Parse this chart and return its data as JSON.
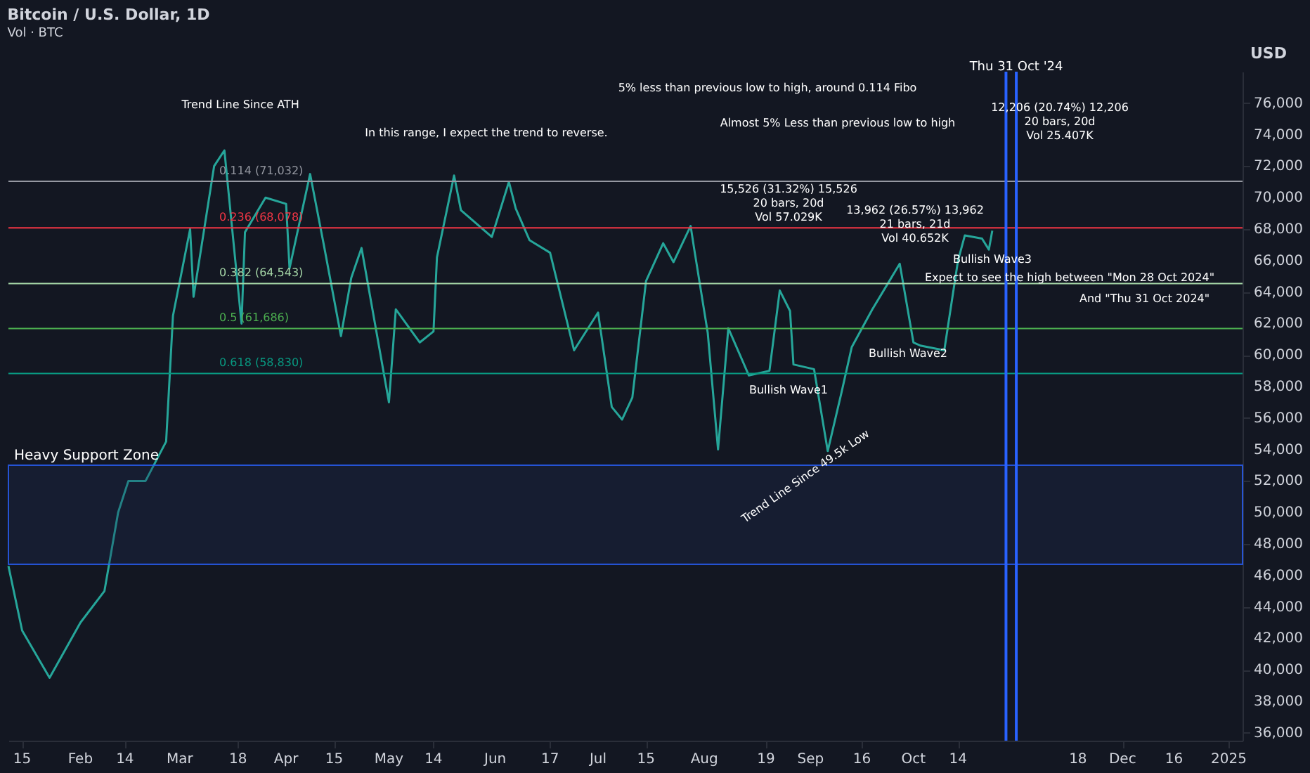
{
  "chart_data": {
    "type": "line",
    "title": "Bitcoin / U.S. Dollar, 1D",
    "subtitle": "Vol · BTC",
    "ylabel": "USD",
    "x": [
      "2024-01-11",
      "2024-01-15",
      "2024-01-23",
      "2024-02-01",
      "2024-02-08",
      "2024-02-12",
      "2024-02-15",
      "2024-02-20",
      "2024-02-26",
      "2024-02-28",
      "2024-03-04",
      "2024-03-05",
      "2024-03-11",
      "2024-03-14",
      "2024-03-19",
      "2024-03-20",
      "2024-03-26",
      "2024-04-01",
      "2024-04-02",
      "2024-04-08",
      "2024-04-12",
      "2024-04-17",
      "2024-04-20",
      "2024-04-23",
      "2024-05-01",
      "2024-05-03",
      "2024-05-10",
      "2024-05-14",
      "2024-05-15",
      "2024-05-20",
      "2024-05-22",
      "2024-05-31",
      "2024-06-05",
      "2024-06-07",
      "2024-06-11",
      "2024-06-17",
      "2024-06-24",
      "2024-07-01",
      "2024-07-05",
      "2024-07-08",
      "2024-07-11",
      "2024-07-15",
      "2024-07-20",
      "2024-07-23",
      "2024-07-28",
      "2024-07-29",
      "2024-08-02",
      "2024-08-05",
      "2024-08-08",
      "2024-08-14",
      "2024-08-20",
      "2024-08-23",
      "2024-08-26",
      "2024-08-27",
      "2024-09-02",
      "2024-09-06",
      "2024-09-10",
      "2024-09-13",
      "2024-09-19",
      "2024-09-27",
      "2024-10-01",
      "2024-10-03",
      "2024-10-10",
      "2024-10-14",
      "2024-10-16",
      "2024-10-21",
      "2024-10-23",
      "2024-10-24"
    ],
    "series": [
      {
        "color": "#26a69a",
        "values": [
          46600,
          42500,
          39500,
          43000,
          45000,
          50000,
          52000,
          52000,
          54500,
          62500,
          68000,
          63700,
          72000,
          73000,
          62000,
          67800,
          70000,
          69600,
          65500,
          71500,
          67000,
          61200,
          64900,
          66800,
          57000,
          62900,
          60800,
          61500,
          66200,
          71400,
          69200,
          67500,
          71000,
          69300,
          67300,
          66500,
          60300,
          62700,
          56700,
          55900,
          57300,
          64700,
          67100,
          65900,
          68200,
          66800,
          61400,
          54000,
          61700,
          58700,
          59000,
          64100,
          62800,
          59400,
          59100,
          53900,
          57600,
          60500,
          62900,
          65800,
          60800,
          60600,
          60300,
          66000,
          67600,
          67400,
          66700,
          67900
        ]
      }
    ],
    "xlim": [
      "2024-01-11",
      "2025-01-05"
    ],
    "xticks": [
      {
        "value": "2024-01-15",
        "label": "15"
      },
      {
        "value": "2024-02-01",
        "label": "Feb"
      },
      {
        "value": "2024-02-14",
        "label": "14"
      },
      {
        "value": "2024-03-01",
        "label": "Mar"
      },
      {
        "value": "2024-03-18",
        "label": "18"
      },
      {
        "value": "2024-04-01",
        "label": "Apr"
      },
      {
        "value": "2024-04-15",
        "label": "15"
      },
      {
        "value": "2024-05-01",
        "label": "May"
      },
      {
        "value": "2024-05-14",
        "label": "14"
      },
      {
        "value": "2024-06-01",
        "label": "Jun"
      },
      {
        "value": "2024-06-17",
        "label": "17"
      },
      {
        "value": "2024-07-01",
        "label": "Jul"
      },
      {
        "value": "2024-07-15",
        "label": "15"
      },
      {
        "value": "2024-08-01",
        "label": "Aug"
      },
      {
        "value": "2024-08-19",
        "label": "19"
      },
      {
        "value": "2024-09-01",
        "label": "Sep"
      },
      {
        "value": "2024-09-16",
        "label": "16"
      },
      {
        "value": "2024-10-01",
        "label": "Oct"
      },
      {
        "value": "2024-10-14",
        "label": "14"
      },
      {
        "value": "2024-11-18",
        "label": "18"
      },
      {
        "value": "2024-12-01",
        "label": "Dec"
      },
      {
        "value": "2024-12-16",
        "label": "16"
      },
      {
        "value": "2025-01-01",
        "label": "2025"
      }
    ],
    "ylim": [
      35500,
      78000
    ],
    "yticks": [
      {
        "value": 36000,
        "label": "36,000"
      },
      {
        "value": 38000,
        "label": "38,000"
      },
      {
        "value": 40000,
        "label": "40,000"
      },
      {
        "value": 42000,
        "label": "42,000"
      },
      {
        "value": 44000,
        "label": "44,000"
      },
      {
        "value": 46000,
        "label": "46,000"
      },
      {
        "value": 48000,
        "label": "48,000"
      },
      {
        "value": 50000,
        "label": "50,000"
      },
      {
        "value": 52000,
        "label": "52,000"
      },
      {
        "value": 54000,
        "label": "54,000"
      },
      {
        "value": 56000,
        "label": "56,000"
      },
      {
        "value": 58000,
        "label": "58,000"
      },
      {
        "value": 60000,
        "label": "60,000"
      },
      {
        "value": 62000,
        "label": "62,000"
      },
      {
        "value": 64000,
        "label": "64,000"
      },
      {
        "value": 66000,
        "label": "66,000"
      },
      {
        "value": 68000,
        "label": "68,000"
      },
      {
        "value": 70000,
        "label": "70,000"
      },
      {
        "value": 72000,
        "label": "72,000"
      },
      {
        "value": 74000,
        "label": "74,000"
      },
      {
        "value": 76000,
        "label": "76,000"
      }
    ],
    "ref_lines": [
      {
        "axis": "y",
        "value": 71032,
        "label": "0.114 (71,032)",
        "color": "#9598a1"
      },
      {
        "axis": "y",
        "value": 68078,
        "label": "0.236 (68,078)",
        "color": "#f23645"
      },
      {
        "axis": "y",
        "value": 64543,
        "label": "0.382 (64,543)",
        "color": "#a5d6a7"
      },
      {
        "axis": "y",
        "value": 61686,
        "label": "0.5 (61,686)",
        "color": "#4caf50"
      },
      {
        "axis": "y",
        "value": 58830,
        "label": "0.618 (58,830)",
        "color": "#089981"
      },
      {
        "axis": "x",
        "value": "2024-10-28",
        "color": "#2962ff"
      },
      {
        "axis": "x",
        "value": "2024-10-31",
        "label": "Thu 31 Oct '24",
        "color": "#2962ff"
      }
    ],
    "bands": [
      {
        "axis": "y",
        "from": 46700,
        "to": 53000,
        "label": "Heavy Support Zone",
        "color": "#1e2a55"
      }
    ],
    "annotations": [
      "Trend Line Since ATH",
      "In this range, I expect the trend to reverse.",
      "5% less than previous low to high, around 0.114 Fibo",
      "Almost 5% Less than previous low to high",
      "15,526 (31.32%) 15,526\n20 bars, 20d\nVol 57.029K",
      "13,962 (26.57%) 13,962\n21 bars, 21d\nVol 40.652K",
      "12,206 (20.74%) 12,206\n20 bars, 20d\nVol 25.407K",
      "Bullish Wave1",
      "Bullish Wave2",
      "Bullish Wave3",
      "Trend Line Since 49.5k Low",
      "Expect to see the high between \"Mon 28 Oct 2024\"",
      "And \"Thu 31 Oct 2024\""
    ],
    "grid": false
  }
}
